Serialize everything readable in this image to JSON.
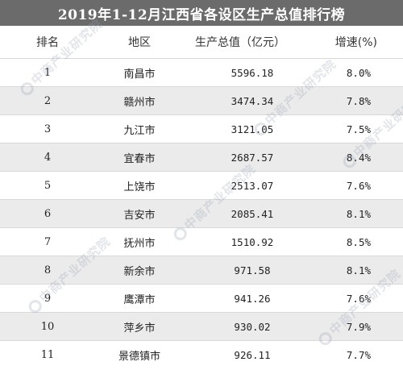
{
  "title": "2019年1-12月江西省各设区生产总值排行榜",
  "columns": {
    "rank": "排名",
    "region": "地区",
    "gdp": "生产总值（亿元）",
    "growth": "增速(%)"
  },
  "rows": [
    {
      "rank": "1",
      "region": "南昌市",
      "gdp": "5596.18",
      "growth": "8.0%"
    },
    {
      "rank": "2",
      "region": "赣州市",
      "gdp": "3474.34",
      "growth": "7.8%"
    },
    {
      "rank": "3",
      "region": "九江市",
      "gdp": "3121.05",
      "growth": "7.5%"
    },
    {
      "rank": "4",
      "region": "宜春市",
      "gdp": "2687.57",
      "growth": "8.4%"
    },
    {
      "rank": "5",
      "region": "上饶市",
      "gdp": "2513.07",
      "growth": "7.6%"
    },
    {
      "rank": "6",
      "region": "吉安市",
      "gdp": "2085.41",
      "growth": "8.1%"
    },
    {
      "rank": "7",
      "region": "抚州市",
      "gdp": "1510.92",
      "growth": "8.5%"
    },
    {
      "rank": "8",
      "region": "新余市",
      "gdp": "971.58",
      "growth": "8.1%"
    },
    {
      "rank": "9",
      "region": "鹰潭市",
      "gdp": "941.26",
      "growth": "7.6%"
    },
    {
      "rank": "10",
      "region": "萍乡市",
      "gdp": "930.02",
      "growth": "7.9%"
    },
    {
      "rank": "11",
      "region": "景德镇市",
      "gdp": "926.11",
      "growth": "7.7%"
    }
  ],
  "watermark": {
    "text": "中商产业研究院"
  },
  "colors": {
    "title_bg": "#6b6b6b",
    "row_alt": "#ebebeb",
    "text": "#222222"
  }
}
